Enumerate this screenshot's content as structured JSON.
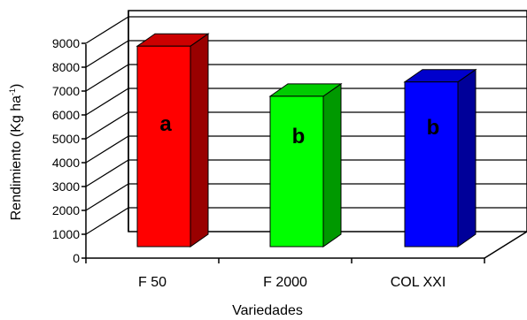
{
  "chart_data": {
    "type": "bar",
    "categories": [
      "F 50",
      "F 2000",
      "COL  XXI"
    ],
    "values": [
      8400,
      6300,
      6900
    ],
    "bar_labels": [
      "a",
      "b",
      "b"
    ],
    "colors": {
      "front": [
        "#ff0000",
        "#00ff00",
        "#0000ff"
      ],
      "top": [
        "#cc0000",
        "#00cc00",
        "#0000cc"
      ],
      "side": [
        "#990000",
        "#009900",
        "#000099"
      ]
    },
    "ylim": [
      0,
      9000
    ],
    "yticks": [
      0,
      1000,
      2000,
      3000,
      4000,
      5000,
      6000,
      7000,
      8000,
      9000
    ],
    "ylabel": "Rendimiento (Kg ha",
    "ylabel_sup": "-1",
    "ylabel_close": ")",
    "xlabel": "Variedades",
    "grid": true
  }
}
